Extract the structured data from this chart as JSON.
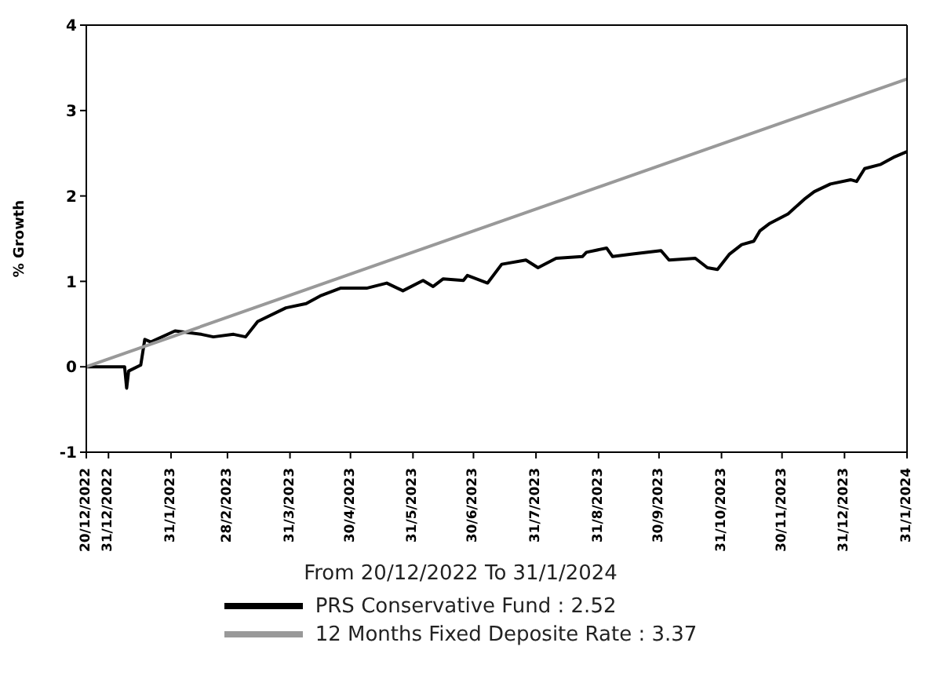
{
  "chart_data": {
    "type": "line",
    "ylabel": "% Growth",
    "xlabel": "From 20/12/2022 To 31/1/2024",
    "ylim": [
      -1,
      4
    ],
    "yticks": [
      -1,
      0,
      1,
      2,
      3,
      4
    ],
    "xlim": [
      "2022-12-20",
      "2024-01-31"
    ],
    "xticks": [
      {
        "value": "2022-12-20",
        "label": "20/12/2022"
      },
      {
        "value": "2022-12-31",
        "label": "31/12/2022"
      },
      {
        "value": "2023-01-31",
        "label": "31/1/2023"
      },
      {
        "value": "2023-02-28",
        "label": "28/2/2023"
      },
      {
        "value": "2023-03-31",
        "label": "31/3/2023"
      },
      {
        "value": "2023-04-30",
        "label": "30/4/2023"
      },
      {
        "value": "2023-05-31",
        "label": "31/5/2023"
      },
      {
        "value": "2023-06-30",
        "label": "30/6/2023"
      },
      {
        "value": "2023-07-31",
        "label": "31/7/2023"
      },
      {
        "value": "2023-08-31",
        "label": "31/8/2023"
      },
      {
        "value": "2023-09-30",
        "label": "30/9/2023"
      },
      {
        "value": "2023-10-31",
        "label": "31/10/2023"
      },
      {
        "value": "2023-11-30",
        "label": "30/11/2023"
      },
      {
        "value": "2023-12-31",
        "label": "31/12/2023"
      },
      {
        "value": "2024-01-31",
        "label": "31/1/2024"
      }
    ],
    "legend": "bottom",
    "marker": "none",
    "line_style": "solid",
    "series": [
      {
        "name": "PRS Conservative Fund : 2.52",
        "color": "#000000",
        "x": [
          "2022-12-20",
          "2023-01-08",
          "2023-01-09",
          "2023-01-10",
          "2023-01-16",
          "2023-01-18",
          "2023-01-21",
          "2023-02-02",
          "2023-02-15",
          "2023-02-21",
          "2023-03-03",
          "2023-03-09",
          "2023-03-15",
          "2023-03-29",
          "2023-04-08",
          "2023-04-15",
          "2023-04-25",
          "2023-05-08",
          "2023-05-18",
          "2023-05-26",
          "2023-06-05",
          "2023-06-10",
          "2023-06-15",
          "2023-06-25",
          "2023-06-27",
          "2023-07-07",
          "2023-07-14",
          "2023-07-26",
          "2023-08-01",
          "2023-08-10",
          "2023-08-23",
          "2023-08-25",
          "2023-09-04",
          "2023-09-07",
          "2023-09-17",
          "2023-10-01",
          "2023-10-05",
          "2023-10-18",
          "2023-10-24",
          "2023-10-29",
          "2023-11-04",
          "2023-11-10",
          "2023-11-16",
          "2023-11-19",
          "2023-11-24",
          "2023-12-03",
          "2023-12-11",
          "2023-12-16",
          "2023-12-24",
          "2024-01-03",
          "2024-01-06",
          "2024-01-10",
          "2024-01-18",
          "2024-01-25",
          "2024-01-31"
        ],
        "values": [
          0,
          0,
          -0.25,
          -0.05,
          0.02,
          0.32,
          0.29,
          0.42,
          0.38,
          0.35,
          0.38,
          0.35,
          0.53,
          0.69,
          0.74,
          0.83,
          0.92,
          0.92,
          0.98,
          0.89,
          1.01,
          0.94,
          1.03,
          1.01,
          1.07,
          0.98,
          1.2,
          1.25,
          1.16,
          1.27,
          1.29,
          1.34,
          1.39,
          1.29,
          1.32,
          1.36,
          1.25,
          1.27,
          1.16,
          1.14,
          1.32,
          1.43,
          1.47,
          1.59,
          1.68,
          1.79,
          1.96,
          2.05,
          2.14,
          2.19,
          2.17,
          2.32,
          2.37,
          2.46,
          2.52
        ]
      },
      {
        "name": "12 Months Fixed Deposite Rate : 3.37",
        "color": "#999999",
        "x": [
          "2022-12-20",
          "2024-01-31"
        ],
        "values": [
          0,
          3.37
        ]
      }
    ]
  }
}
